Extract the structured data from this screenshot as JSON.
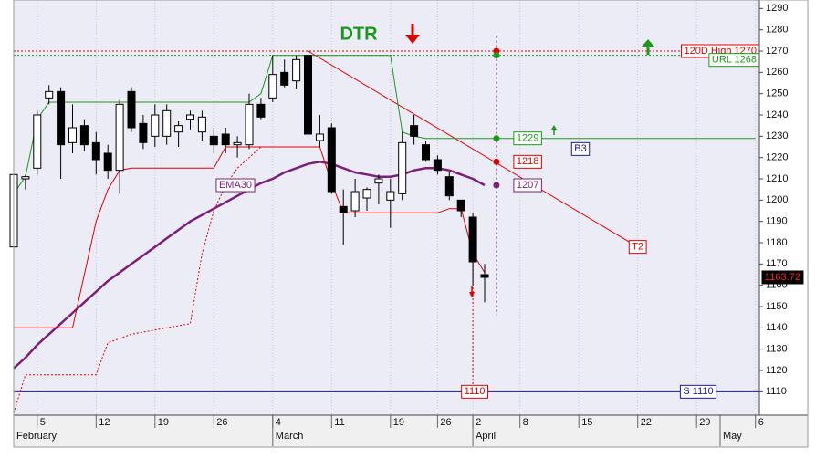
{
  "chart_data": {
    "type": "candlestick",
    "title": "DTR",
    "categories": [
      null,
      null,
      "5",
      null,
      null,
      null,
      null,
      "12",
      null,
      null,
      null,
      null,
      "19",
      null,
      null,
      null,
      null,
      "26",
      null,
      null,
      null,
      null,
      "4",
      null,
      null,
      null,
      null,
      "11",
      null,
      null,
      null,
      null,
      "19",
      null,
      null,
      null,
      "26",
      null,
      null,
      "2",
      null,
      null,
      null,
      "8",
      null,
      null,
      null,
      null,
      "15",
      null,
      null,
      null,
      null,
      "22",
      null,
      null,
      null,
      null,
      "29",
      null,
      null,
      null,
      null,
      "6"
    ],
    "months": [
      "February",
      null,
      null,
      null,
      null,
      null,
      null,
      null,
      null,
      null,
      null,
      null,
      null,
      null,
      null,
      null,
      null,
      null,
      null,
      null,
      null,
      null,
      "March",
      null,
      null,
      null,
      null,
      null,
      null,
      null,
      null,
      null,
      null,
      null,
      null,
      null,
      null,
      null,
      null,
      "April",
      null,
      null,
      null,
      null,
      null,
      null,
      null,
      null,
      null,
      null,
      null,
      null,
      null,
      null,
      null,
      null,
      null,
      null,
      null,
      null,
      "May",
      null,
      null,
      null
    ],
    "open": [
      1178,
      1210,
      1215,
      1248,
      1251,
      1227,
      1235,
      1227,
      1222,
      1214,
      1251,
      1236,
      1230,
      1230,
      1232,
      1238,
      1232,
      1230,
      1231,
      1226,
      1226,
      1245,
      1248,
      1260,
      1256,
      1268,
      1228,
      1234,
      1197,
      1195,
      1201,
      1208,
      1200,
      1203,
      1235,
      1226,
      1219,
      1211,
      1200,
      1192,
      1165,
      null,
      null,
      null,
      null,
      null,
      null,
      null,
      null,
      null,
      null,
      null,
      null,
      null,
      null,
      null,
      null,
      null,
      null,
      null,
      null,
      null,
      null,
      null
    ],
    "high": [
      1215,
      1212,
      1242,
      1254,
      1253,
      1245,
      1238,
      1232,
      1226,
      1247,
      1253,
      1240,
      1245,
      1245,
      1237,
      1242,
      1242,
      1234,
      1234,
      1230,
      1250,
      1248,
      1268,
      1266,
      1268,
      1270,
      1240,
      1236,
      1205,
      1210,
      1206,
      1212,
      1210,
      1232,
      1240,
      1228,
      1221,
      1213,
      1200,
      1194,
      1170,
      null,
      null,
      null,
      null,
      null,
      null,
      null,
      null,
      null,
      null,
      null,
      null,
      null,
      null,
      null,
      null,
      null,
      null,
      null,
      null,
      null,
      null,
      null
    ],
    "low": [
      1175,
      1205,
      1212,
      1245,
      1210,
      1222,
      1223,
      1212,
      1210,
      1203,
      1232,
      1224,
      1225,
      1226,
      1225,
      1233,
      1228,
      1222,
      1222,
      1220,
      1224,
      1238,
      1246,
      1253,
      1252,
      1230,
      1225,
      1203,
      1179,
      1192,
      1195,
      1198,
      1187,
      1200,
      1226,
      1218,
      1212,
      1200,
      1192,
      1160,
      1152,
      null,
      null,
      null,
      null,
      null,
      null,
      null,
      null,
      null,
      null,
      null,
      null,
      null,
      null,
      null,
      null,
      null,
      null,
      null,
      null,
      null,
      null,
      null
    ],
    "close": [
      1212,
      1211,
      1240,
      1251,
      1226,
      1234,
      1226,
      1219,
      1214,
      1245,
      1234,
      1227,
      1240,
      1242,
      1235,
      1240,
      1239,
      1226,
      1226,
      1227,
      1245,
      1239,
      1259,
      1254,
      1266,
      1231,
      1231,
      1204,
      1194,
      1204,
      1205,
      1210,
      1204,
      1227,
      1230,
      1219,
      1214,
      1202,
      1195,
      1171,
      1163.72,
      null,
      null,
      null,
      null,
      null,
      null,
      null,
      null,
      null,
      null,
      null,
      null,
      null,
      null,
      null,
      null,
      null,
      null,
      null,
      null,
      null,
      null,
      null
    ],
    "lines": [
      {
        "label": "EMA30",
        "color": "#7b1f7b",
        "width": 2.5,
        "style": "solid",
        "values": [
          1121,
          1126,
          1132,
          1137,
          1142,
          1147,
          1152,
          1157,
          1162,
          1166,
          1170,
          1174,
          1178,
          1182,
          1186,
          1190,
          1193,
          1196,
          1199,
          1202,
          1205,
          1208,
          1210,
          1213,
          1215,
          1217,
          1218,
          1217,
          1215,
          1213,
          1212,
          1211,
          1211,
          1212,
          1214,
          1215,
          1215,
          1214,
          1212,
          1210,
          1207,
          null,
          null,
          null,
          null,
          null,
          null,
          null,
          null,
          null,
          null,
          null,
          null,
          null,
          null,
          null,
          null,
          null,
          null,
          null,
          null,
          null,
          null,
          null
        ]
      },
      {
        "color": "#1a9a1a",
        "width": 1,
        "style": "solid",
        "values": [
          1203,
          1211,
          1238,
          1246,
          1246,
          1246,
          1246,
          1246,
          1246,
          1246,
          1246,
          1246,
          1246,
          1246,
          1246,
          1246,
          1246,
          1246,
          1246,
          1246,
          1246,
          1250,
          1268,
          1268,
          1268,
          1268,
          1268,
          1268,
          1268,
          1268,
          1268,
          1268,
          1268,
          1232,
          1230,
          1229,
          1229,
          1229,
          1229,
          1229,
          1229,
          1229,
          1229,
          1229,
          1229,
          1229,
          1229,
          1229,
          1229,
          1229,
          1229,
          1229,
          1229,
          1229,
          1229,
          1229,
          1229,
          1229,
          1229,
          1229,
          1229,
          1229,
          1229,
          1229
        ]
      },
      {
        "color": "#e00000",
        "width": 1,
        "style": "solid",
        "values": [
          1140,
          1140,
          1140,
          1140,
          1140,
          1140,
          1165,
          1190,
          1205,
          1214,
          1215,
          1215,
          1215,
          1215,
          1215,
          1215,
          1215,
          1215,
          1225,
          1225,
          1225,
          1225,
          1225,
          1225,
          1225,
          1225,
          1225,
          1208,
          1194,
          1194,
          1194,
          1194,
          1194,
          1194,
          1194,
          1194,
          1194,
          1196,
          1196,
          1175,
          1166,
          null,
          null,
          null,
          null,
          null,
          null,
          null,
          null,
          null,
          null,
          null,
          null,
          null,
          null,
          null,
          null,
          null,
          null,
          null,
          null,
          null,
          null,
          null
        ]
      },
      {
        "color": "#e00000",
        "width": 1,
        "style": "dotted",
        "values": [
          1100,
          1118,
          1118,
          1118,
          1118,
          1118,
          1118,
          1118,
          1133,
          1135,
          1137,
          1138,
          1139,
          1140,
          1141,
          1142,
          1175,
          1195,
          1207,
          1215,
          1220,
          1225,
          null,
          null,
          null,
          null,
          null,
          null,
          null,
          null,
          null,
          null,
          null,
          null,
          null,
          null,
          null,
          null,
          null,
          null,
          null,
          null,
          null,
          null,
          null,
          null,
          null,
          null,
          null,
          null,
          null,
          null,
          null,
          null,
          null,
          null,
          null,
          null,
          null,
          null,
          null,
          null,
          null,
          null
        ]
      }
    ],
    "levels": [
      {
        "value": 1270,
        "label": "120D High 1270",
        "color": "#e00000",
        "style": "dotted"
      },
      {
        "value": 1268,
        "label": "URL 1268",
        "color": "#1a9a1a",
        "style": "dotted"
      },
      {
        "value": 1110,
        "label": "S 1110",
        "color": "#1a1a9a",
        "style": "solid"
      }
    ],
    "markers": [
      {
        "value": 1270,
        "color": "#e00000",
        "show_label": false
      },
      {
        "value": 1268,
        "color": "#1a9a1a",
        "show_label": false
      },
      {
        "value": 1229,
        "color": "#1a9a1a",
        "show_label": true
      },
      {
        "value": 1218,
        "color": "#e00000",
        "show_label": true
      },
      {
        "value": 1207,
        "color": "#7b1f7b",
        "show_label": true
      }
    ],
    "trend": {
      "label": "T2",
      "values": [
        1270,
        1178
      ],
      "color": "#e00000"
    },
    "target": {
      "value": 1110,
      "color": "#e00000"
    },
    "signal": {
      "text": "B3",
      "color": "#1a1a9a"
    },
    "ylim": [
      1099,
      1294
    ],
    "yticks": [
      1110,
      1120,
      1130,
      1140,
      1150,
      1160,
      1170,
      1180,
      1190,
      1200,
      1210,
      1220,
      1230,
      1240,
      1250,
      1260,
      1270,
      1280,
      1290
    ],
    "grid": "x"
  }
}
